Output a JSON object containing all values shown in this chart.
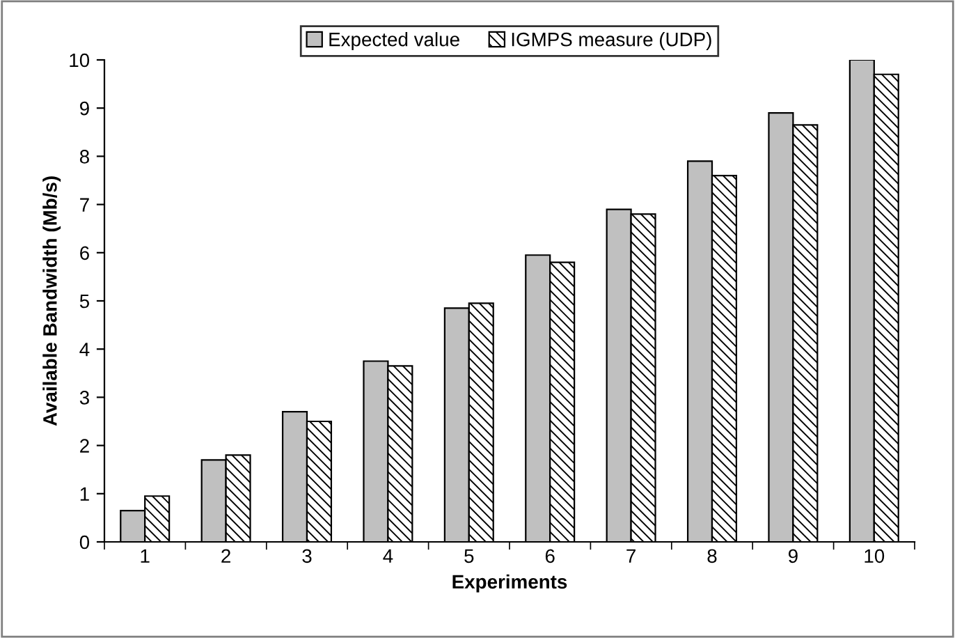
{
  "chart_data": {
    "type": "bar",
    "xlabel": "Experiments",
    "ylabel": "Available Bandwidth (Mb/s)",
    "categories": [
      "1",
      "2",
      "3",
      "4",
      "5",
      "6",
      "7",
      "8",
      "9",
      "10"
    ],
    "series": [
      {
        "name": "Expected value",
        "color": "#c0c0c0",
        "values": [
          0.65,
          1.7,
          2.7,
          3.75,
          4.85,
          5.95,
          6.9,
          7.9,
          8.9,
          10
        ]
      },
      {
        "name": "IGMPS measure (UDP)",
        "color": "#000000",
        "values": [
          0.95,
          1.8,
          2.5,
          3.65,
          4.95,
          5.8,
          6.8,
          7.6,
          8.65,
          9.7
        ]
      }
    ],
    "ylim": [
      0,
      10
    ],
    "yticks": [
      0,
      1,
      2,
      3,
      4,
      5,
      6,
      7,
      8,
      9,
      10
    ],
    "legend": "top",
    "grid": false
  }
}
